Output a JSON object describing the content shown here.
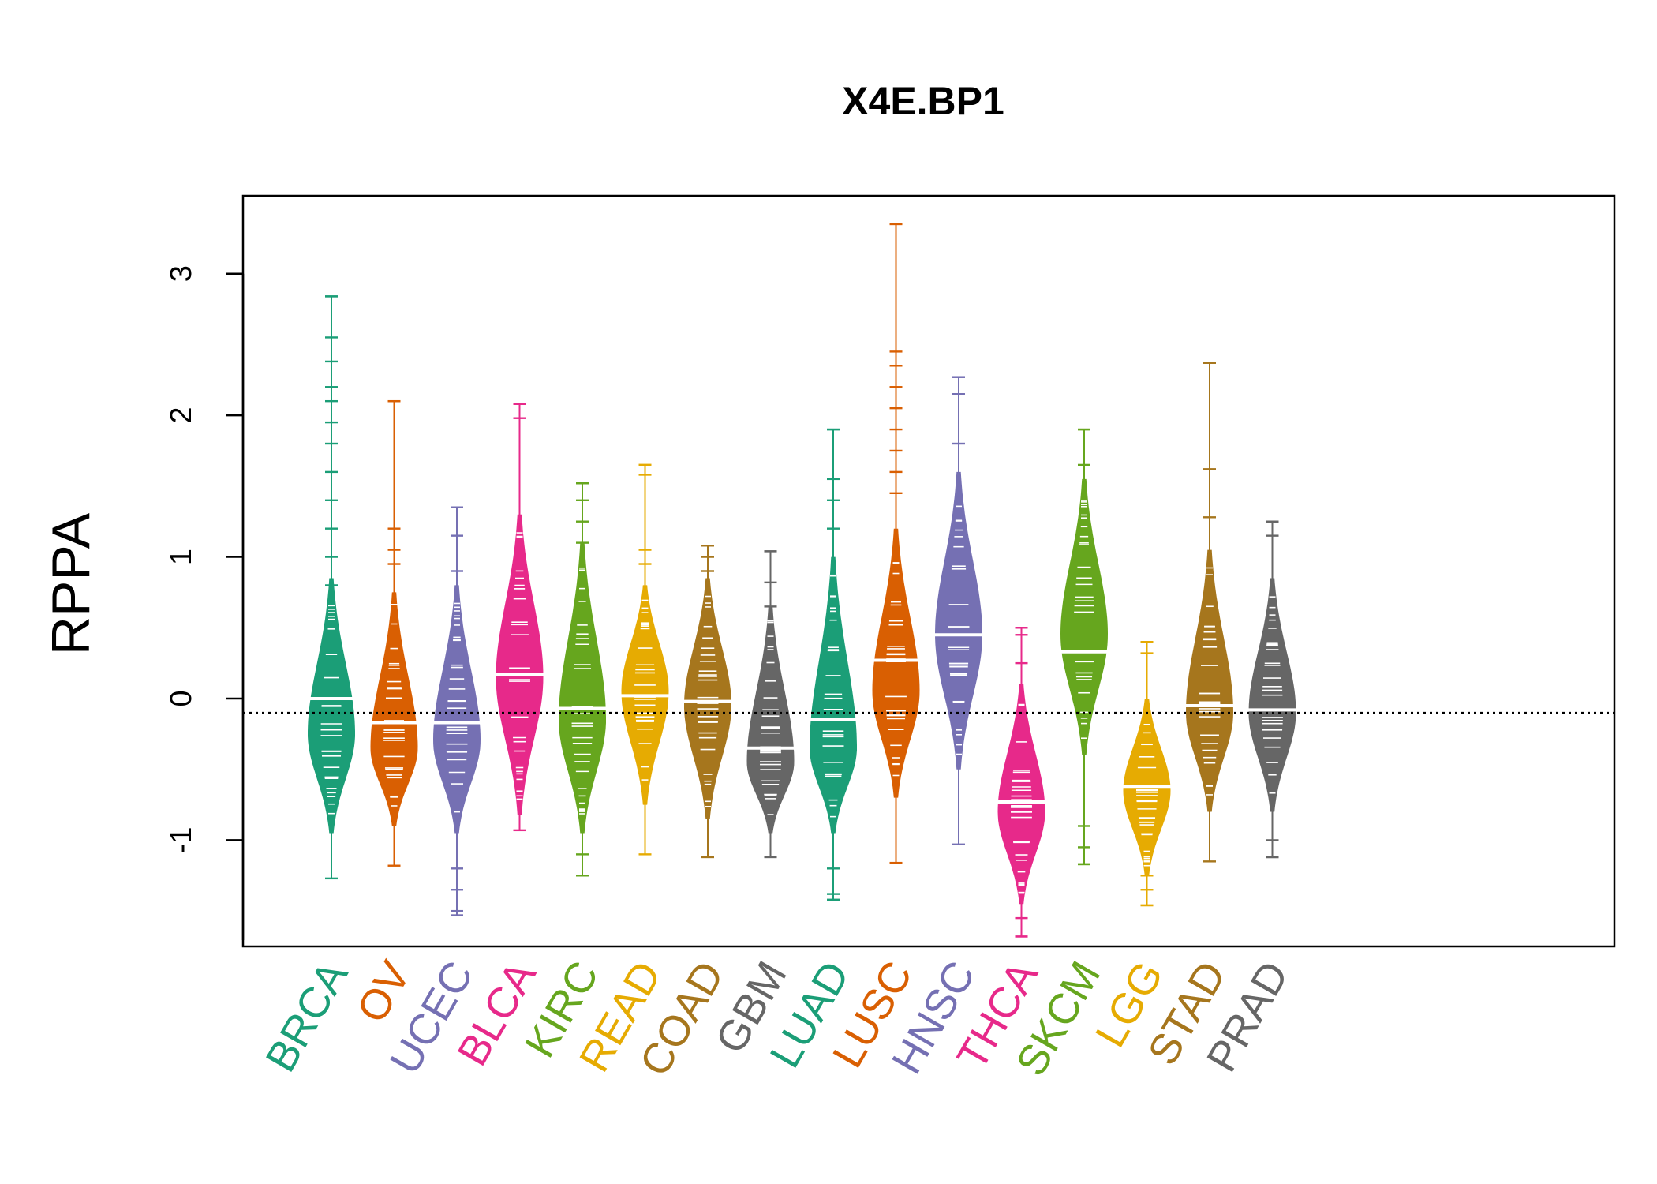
{
  "chart_data": {
    "type": "beanplot",
    "title": "X4E.BP1",
    "ylabel": "RPPA",
    "xlabel": "",
    "ylim": [
      -1.75,
      3.55
    ],
    "yticks": [
      -1,
      0,
      1,
      2,
      3
    ],
    "ytick_labels": [
      "-1",
      "0",
      "1",
      "2",
      "3"
    ],
    "overall_reference_line": -0.1,
    "categories": [
      "BRCA",
      "OV",
      "UCEC",
      "BLCA",
      "KIRC",
      "READ",
      "COAD",
      "GBM",
      "LUAD",
      "LUSC",
      "HNSC",
      "THCA",
      "SKCM",
      "LGG",
      "STAD",
      "PRAD"
    ],
    "colors": [
      "#1B9E77",
      "#D95F02",
      "#7570B3",
      "#E7298A",
      "#66A61E",
      "#E6AB02",
      "#A6761D",
      "#666666",
      "#1B9E77",
      "#D95F02",
      "#7570B3",
      "#E7298A",
      "#66A61E",
      "#E6AB02",
      "#A6761D",
      "#666666"
    ],
    "series": [
      {
        "name": "BRCA",
        "mean": 0.0,
        "min": -1.27,
        "max": 2.84,
        "body_low": -0.95,
        "body_high": 0.85,
        "peak": -0.25,
        "outliers": [
          2.84,
          2.55,
          2.38,
          2.2,
          2.1,
          1.95,
          1.8,
          1.6,
          1.4,
          1.2,
          1.0,
          0.8
        ]
      },
      {
        "name": "OV",
        "mean": -0.17,
        "min": -1.18,
        "max": 2.1,
        "body_low": -0.9,
        "body_high": 0.75,
        "peak": -0.35,
        "outliers": [
          2.1,
          1.2,
          1.05,
          0.95
        ]
      },
      {
        "name": "UCEC",
        "mean": -0.17,
        "min": -1.53,
        "max": 1.35,
        "body_low": -0.95,
        "body_high": 0.8,
        "peak": -0.3,
        "outliers": [
          1.35,
          1.15,
          0.9,
          -1.2,
          -1.35,
          -1.5
        ]
      },
      {
        "name": "BLCA",
        "mean": 0.17,
        "min": -0.93,
        "max": 2.08,
        "body_low": -0.82,
        "body_high": 1.3,
        "peak": 0.15,
        "outliers": [
          2.08,
          1.98
        ]
      },
      {
        "name": "KIRC",
        "mean": -0.07,
        "min": -1.25,
        "max": 1.52,
        "body_low": -0.95,
        "body_high": 1.1,
        "peak": -0.15,
        "outliers": [
          1.52,
          1.4,
          1.25,
          1.1,
          -1.1,
          -1.25
        ]
      },
      {
        "name": "READ",
        "mean": 0.02,
        "min": -1.1,
        "max": 1.65,
        "body_low": -0.75,
        "body_high": 0.8,
        "peak": 0.05,
        "outliers": [
          1.65,
          1.58,
          1.05,
          0.95
        ]
      },
      {
        "name": "COAD",
        "mean": -0.02,
        "min": -1.12,
        "max": 1.08,
        "body_low": -0.85,
        "body_high": 0.85,
        "peak": -0.05,
        "outliers": [
          1.08,
          1.0,
          0.9
        ]
      },
      {
        "name": "GBM",
        "mean": -0.35,
        "min": -1.12,
        "max": 1.04,
        "body_low": -0.95,
        "body_high": 0.65,
        "peak": -0.45,
        "outliers": [
          1.04,
          0.82,
          0.65
        ]
      },
      {
        "name": "LUAD",
        "mean": -0.15,
        "min": -1.42,
        "max": 1.9,
        "body_low": -0.95,
        "body_high": 1.0,
        "peak": -0.35,
        "outliers": [
          1.9,
          1.55,
          1.4,
          1.2,
          -1.2,
          -1.38
        ]
      },
      {
        "name": "LUSC",
        "mean": 0.27,
        "min": -1.16,
        "max": 3.35,
        "body_low": -0.7,
        "body_high": 1.2,
        "peak": 0.05,
        "outliers": [
          3.35,
          2.45,
          2.35,
          2.2,
          2.05,
          1.9,
          1.75,
          1.6,
          1.45
        ]
      },
      {
        "name": "HNSC",
        "mean": 0.45,
        "min": -1.03,
        "max": 2.27,
        "body_low": -0.5,
        "body_high": 1.6,
        "peak": 0.45,
        "outliers": [
          2.27,
          2.15,
          1.8
        ]
      },
      {
        "name": "THCA",
        "mean": -0.73,
        "min": -1.68,
        "max": 0.5,
        "body_low": -1.45,
        "body_high": 0.1,
        "peak": -0.8,
        "outliers": [
          0.5,
          0.45,
          0.25,
          -1.55,
          -1.68
        ]
      },
      {
        "name": "SKCM",
        "mean": 0.33,
        "min": -1.17,
        "max": 1.9,
        "body_low": -0.4,
        "body_high": 1.55,
        "peak": 0.45,
        "outliers": [
          1.9,
          1.65,
          -0.9,
          -1.05,
          -1.17
        ]
      },
      {
        "name": "LGG",
        "mean": -0.62,
        "min": -1.46,
        "max": 0.4,
        "body_low": -1.25,
        "body_high": 0.0,
        "peak": -0.65,
        "outliers": [
          0.4,
          0.32,
          -1.25,
          -1.35,
          -1.46
        ]
      },
      {
        "name": "STAD",
        "mean": -0.05,
        "min": -1.15,
        "max": 2.37,
        "body_low": -0.8,
        "body_high": 1.05,
        "peak": -0.1,
        "outliers": [
          2.37,
          1.62,
          1.28
        ]
      },
      {
        "name": "PRAD",
        "mean": -0.08,
        "min": -1.12,
        "max": 1.25,
        "body_low": -0.8,
        "body_high": 0.85,
        "peak": -0.1,
        "outliers": [
          1.25,
          1.15,
          -1.0,
          -1.12
        ]
      }
    ]
  }
}
